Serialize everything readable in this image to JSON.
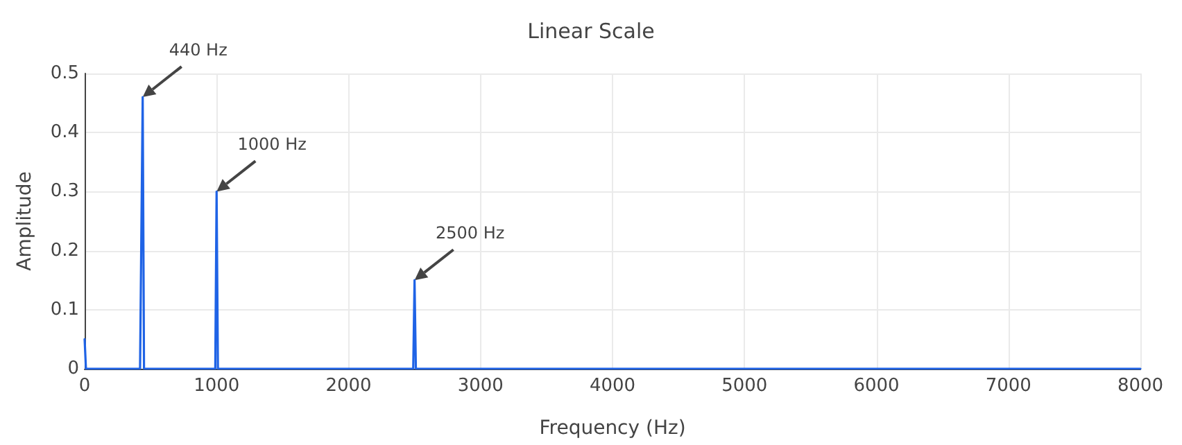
{
  "chart_data": {
    "type": "line",
    "title": "Linear Scale",
    "xlabel": "Frequency (Hz)",
    "ylabel": "Amplitude",
    "x": [
      0,
      10,
      420,
      440,
      450,
      990,
      1000,
      1010,
      2490,
      2500,
      2510,
      8000
    ],
    "series": [
      {
        "color": "#1f63e6",
        "values": [
          0.05,
          0,
          0,
          0.46,
          0,
          0,
          0.3,
          0,
          0,
          0.15,
          0,
          0
        ]
      }
    ],
    "xlim": [
      0,
      8000
    ],
    "xticks": [
      0,
      1000,
      2000,
      3000,
      4000,
      5000,
      6000,
      7000,
      8000
    ],
    "ylim": [
      0,
      0.5
    ],
    "yticks": [
      0,
      0.1,
      0.2,
      0.3,
      0.4,
      0.5
    ],
    "annotations": [
      {
        "text": "440 Hz",
        "x": 440,
        "y": 0.46
      },
      {
        "text": "1000 Hz",
        "x": 1000,
        "y": 0.3
      },
      {
        "text": "2500 Hz",
        "x": 2500,
        "y": 0.15
      }
    ],
    "grid": true,
    "marker": "none",
    "line_style": "solid"
  }
}
